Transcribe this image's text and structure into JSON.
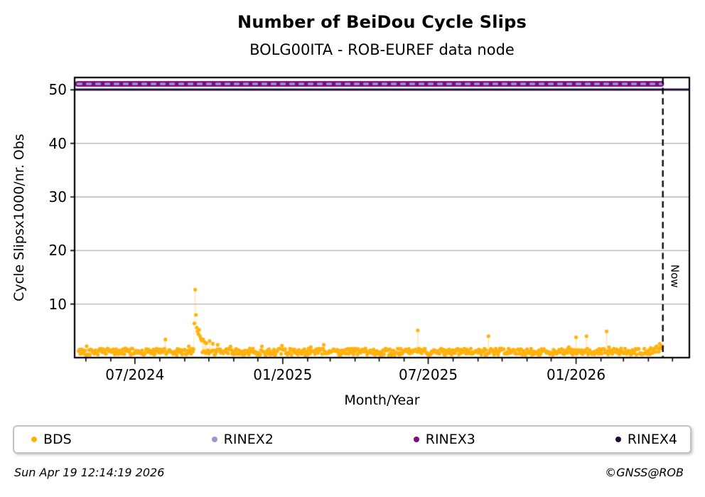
{
  "title": "Number of BeiDou Cycle Slips",
  "subtitle": "BOLG00ITA - ROB-EUREF data node",
  "footer": {
    "timestamp": "Sun Apr 19 12:14:19 2026",
    "credit": "©GNSS@ROB"
  },
  "legend": {
    "position": "bottom",
    "items": [
      {
        "label": "BDS",
        "color": "#FFB20E"
      },
      {
        "label": "RINEX2",
        "color": "#9B97CF"
      },
      {
        "label": "RINEX3",
        "color": "#7B0E7E"
      },
      {
        "label": "RINEX4",
        "color": "#1F0A33"
      }
    ]
  },
  "chart_data": {
    "type": "scatter",
    "title": "Number of BeiDou Cycle Slips",
    "subtitle": "BOLG00ITA - ROB-EUREF data node",
    "xlabel": "Month/Year",
    "ylabel": "Cycle Slipsx1000/nr. Obs",
    "ylim": [
      0,
      52.3
    ],
    "y_ticks": [
      {
        "value": 10,
        "label": "10"
      },
      {
        "value": 20,
        "label": "20"
      },
      {
        "value": 30,
        "label": "30"
      },
      {
        "value": 40,
        "label": "40"
      },
      {
        "value": 50,
        "label": "50"
      }
    ],
    "x_ticks": [
      {
        "date": "2024-07-01",
        "label": "07/2024"
      },
      {
        "date": "2025-01-01",
        "label": "01/2025"
      },
      {
        "date": "2025-07-01",
        "label": "07/2025"
      },
      {
        "date": "2026-01-01",
        "label": "01/2026"
      }
    ],
    "x_range": {
      "start": "2024-04-17",
      "end": "2026-05-22"
    },
    "grid": true,
    "grid_color": "#b0b0b0",
    "now_marker": {
      "date": "2026-04-19",
      "label": "Now"
    },
    "series": [
      {
        "name": "BDS",
        "type": "scatter",
        "color": "#FFB20E",
        "marker_px": 5,
        "baseline": {
          "start": "2024-04-22",
          "end": "2026-04-18",
          "mean": 1.1,
          "jitter": 1.1,
          "min": 0.3,
          "seed": 42
        },
        "end_rise": {
          "days": 16,
          "max_add": 1.5
        },
        "spikes": [
          [
            "2024-08-08",
            3.4
          ],
          [
            "2024-09-13",
            6.4
          ],
          [
            "2024-09-14",
            12.7
          ],
          [
            "2024-09-15",
            8.0
          ],
          [
            "2024-09-16",
            5.6
          ],
          [
            "2024-09-17",
            4.9
          ],
          [
            "2024-09-18",
            4.4
          ],
          [
            "2024-09-19",
            5.2
          ],
          [
            "2024-09-20",
            4.0
          ],
          [
            "2024-09-21",
            3.6
          ],
          [
            "2024-09-22",
            3.2
          ],
          [
            "2024-09-24",
            3.4
          ],
          [
            "2024-09-26",
            2.9
          ],
          [
            "2024-09-28",
            2.7
          ],
          [
            "2024-10-02",
            3.1
          ],
          [
            "2024-10-06",
            2.6
          ],
          [
            "2024-10-12",
            2.4
          ],
          [
            "2025-06-18",
            5.1
          ],
          [
            "2025-09-14",
            4.0
          ],
          [
            "2026-01-01",
            3.8
          ],
          [
            "2026-01-14",
            4.0
          ],
          [
            "2026-02-08",
            4.9
          ]
        ]
      },
      {
        "name": "RINEX2",
        "type": "line",
        "color": "#9B97CF",
        "value": 51.1,
        "start": "2024-04-21",
        "end": "2026-04-17"
      },
      {
        "name": "RINEX3",
        "type": "line",
        "color": "#7B0E7E",
        "value": 51.1,
        "start": "2024-04-21",
        "end": "2026-04-17"
      },
      {
        "name": "RINEX4",
        "type": "line",
        "color": "#1F0A33",
        "value": 50.05,
        "start": "2024-04-17",
        "end": "2026-05-22"
      }
    ]
  }
}
